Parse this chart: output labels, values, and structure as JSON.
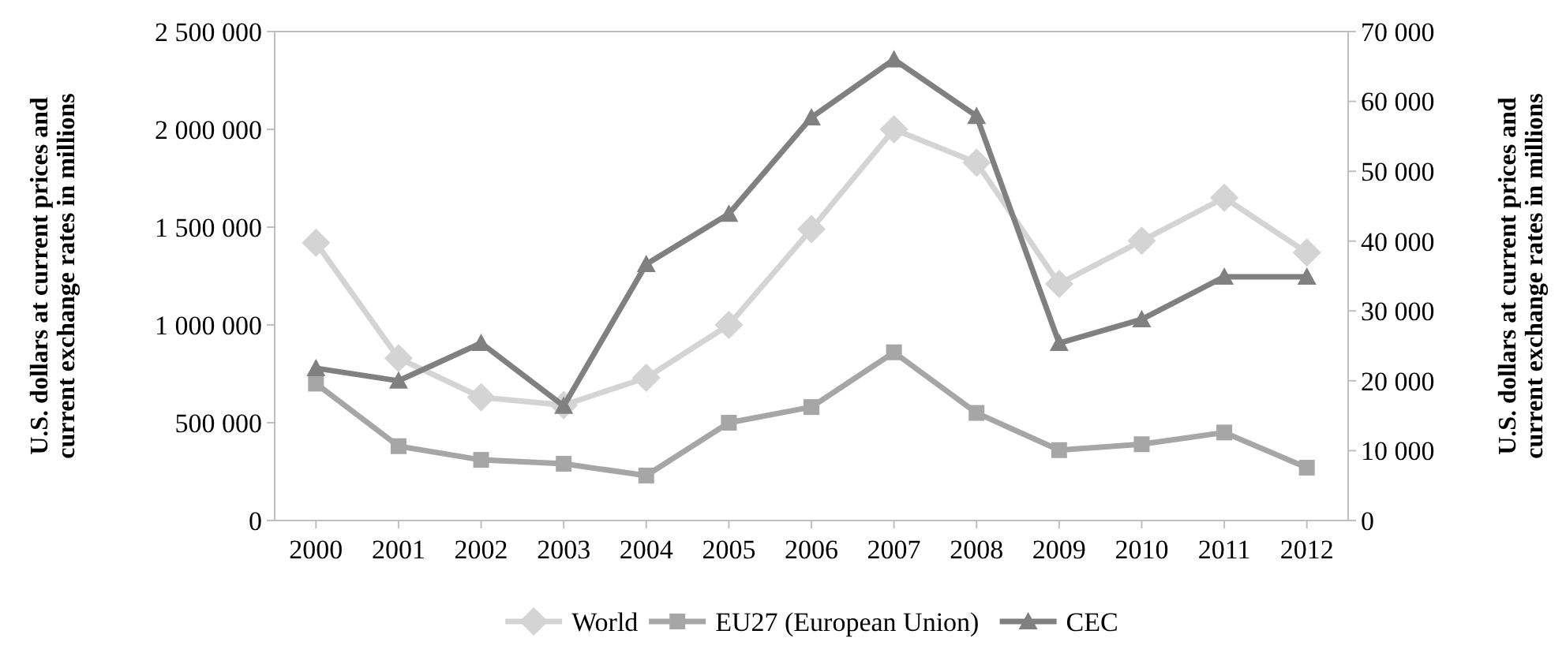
{
  "chart_data": {
    "type": "line",
    "ylabel": "U.S. dollars at current prices and current exchange rates in millions",
    "y2label": "U.S. dollars at current prices and current exchange rates in millions",
    "categories": [
      "2000",
      "2001",
      "2002",
      "2003",
      "2004",
      "2005",
      "2006",
      "2007",
      "2008",
      "2009",
      "2010",
      "2011",
      "2012"
    ],
    "series": [
      {
        "name": "World",
        "color": "#d4d4d4",
        "marker": "diamond",
        "values": [
          1420000,
          830000,
          630000,
          590000,
          730000,
          1000000,
          1490000,
          2000000,
          1830000,
          1210000,
          1430000,
          1650000,
          1370000
        ]
      },
      {
        "name": "EU27 (European Union)",
        "color": "#a6a6a6",
        "marker": "square",
        "values": [
          700000,
          380000,
          310000,
          290000,
          230000,
          500000,
          580000,
          860000,
          550000,
          360000,
          390000,
          450000,
          270000
        ]
      },
      {
        "name": "CEC",
        "color": "#808080",
        "marker": "triangle",
        "axis": "y2",
        "values": [
          21800,
          20000,
          25400,
          16400,
          36700,
          43900,
          57700,
          66000,
          57900,
          25400,
          28800,
          34900,
          34900
        ]
      }
    ],
    "ylim": [
      0,
      2500000
    ],
    "yticks": [
      0,
      {
        "value": 500000,
        "label": "500 000"
      },
      {
        "value": 1000000,
        "label": "1 000 000"
      },
      {
        "value": 1500000,
        "label": "1 500 000"
      },
      {
        "value": 2000000,
        "label": "2 000 000"
      },
      {
        "value": 2500000,
        "label": "2 500 000"
      }
    ],
    "y2lim": [
      0,
      70000
    ],
    "y2ticks": [
      0,
      {
        "value": 10000,
        "label": "10 000"
      },
      {
        "value": 20000,
        "label": "20 000"
      },
      {
        "value": 30000,
        "label": "30 000"
      },
      {
        "value": 40000,
        "label": "40 000"
      },
      {
        "value": 50000,
        "label": "50 000"
      },
      {
        "value": 60000,
        "label": "60 000"
      },
      {
        "value": 70000,
        "label": "70 000"
      }
    ],
    "grid": false,
    "legend": "bottom",
    "line_style": "solid"
  }
}
